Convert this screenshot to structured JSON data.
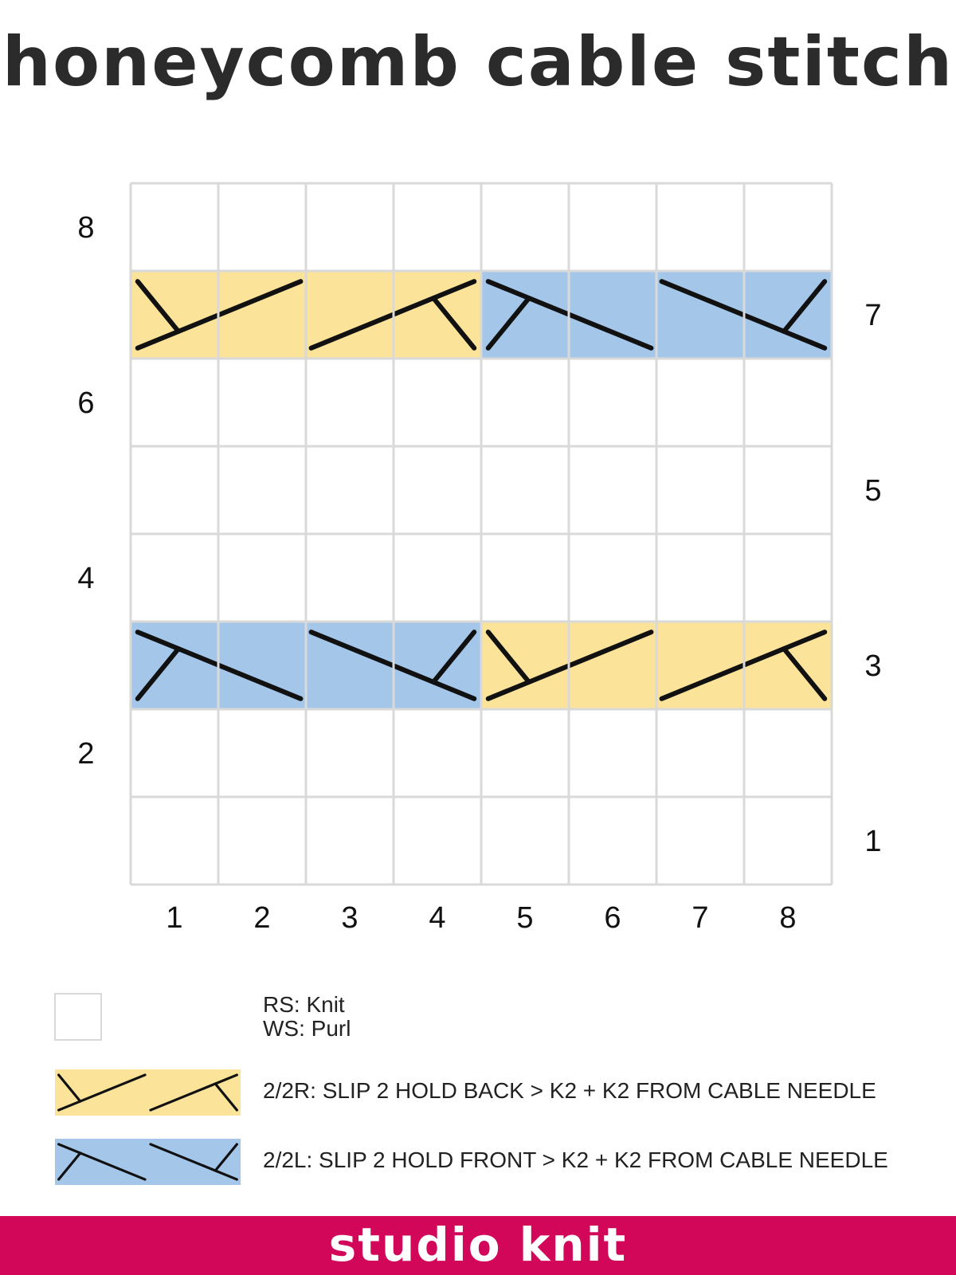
{
  "title": "honeycomb cable stitch",
  "footer": "studio knit",
  "colors": {
    "yellow": "#fbe39a",
    "blue": "#a3c6e9",
    "grid": "#d9d9d9",
    "stroke": "#111111",
    "brand": "#d2075a"
  },
  "chart": {
    "cols": 8,
    "rows": 8,
    "col_labels": [
      "1",
      "2",
      "3",
      "4",
      "5",
      "6",
      "7",
      "8"
    ],
    "left_row_labels": [
      "8",
      "6",
      "4",
      "2"
    ],
    "right_row_labels": [
      "7",
      "5",
      "3",
      "1"
    ],
    "cables": [
      {
        "row": 7,
        "start_col": 1,
        "width": 4,
        "type": "2/2R"
      },
      {
        "row": 7,
        "start_col": 5,
        "width": 4,
        "type": "2/2L"
      },
      {
        "row": 3,
        "start_col": 1,
        "width": 4,
        "type": "2/2L"
      },
      {
        "row": 3,
        "start_col": 5,
        "width": 4,
        "type": "2/2R"
      }
    ]
  },
  "legend": {
    "knit": {
      "rs": "RS: Knit",
      "ws": "WS: Purl"
    },
    "right_cross": {
      "type": "2/2R",
      "text": "2/2R: SLIP 2 HOLD BACK > K2 + K2 FROM CABLE NEEDLE"
    },
    "left_cross": {
      "type": "2/2L",
      "text": "2/2L: SLIP 2 HOLD FRONT > K2 + K2 FROM CABLE NEEDLE"
    }
  }
}
